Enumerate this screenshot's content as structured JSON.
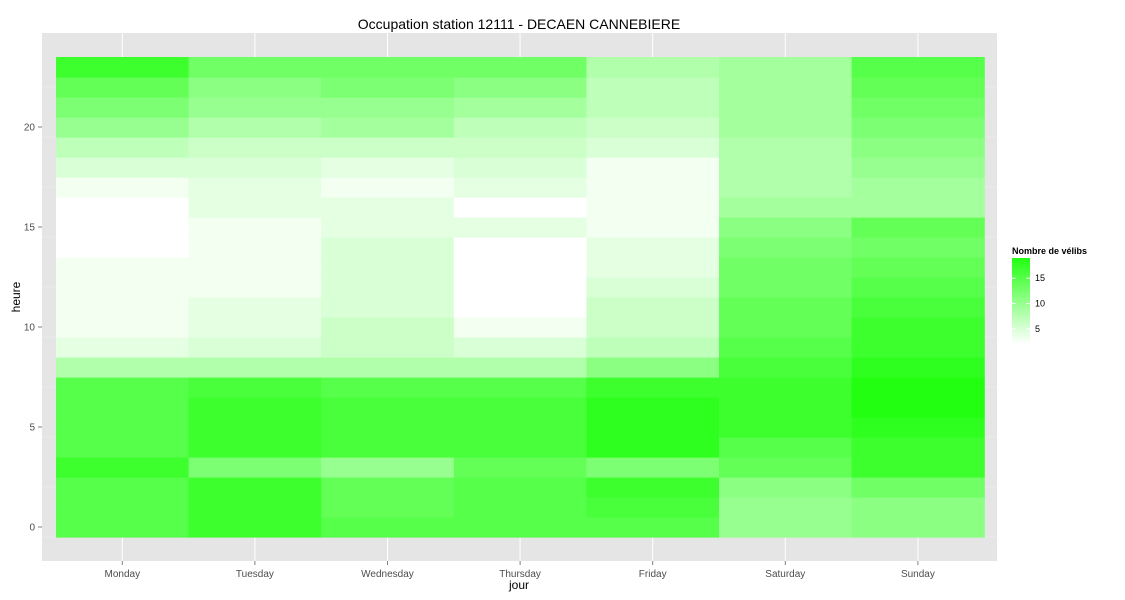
{
  "chart_data": {
    "type": "heatmap",
    "title": "Occupation station 12111 - DECAEN CANNEBIERE",
    "xlabel": "jour",
    "ylabel": "heure",
    "x_categories": [
      "Monday",
      "Tuesday",
      "Wednesday",
      "Thursday",
      "Friday",
      "Saturday",
      "Sunday"
    ],
    "y_hours": [
      0,
      1,
      2,
      3,
      4,
      5,
      6,
      7,
      8,
      9,
      10,
      11,
      12,
      13,
      14,
      15,
      16,
      17,
      18,
      19,
      20,
      21,
      22,
      23
    ],
    "y_ticks": [
      0,
      5,
      10,
      15,
      20
    ],
    "ylim": [
      -0.5,
      23.5
    ],
    "color_range": [
      2,
      19
    ],
    "color_low": "#ffffff",
    "color_high": "#22ff11",
    "legend": {
      "title": "Nombre de vélibs",
      "ticks": [
        5,
        10,
        15
      ],
      "position": "right"
    },
    "grid": true,
    "values": [
      [
        15,
        17,
        15,
        15,
        15,
        10,
        11
      ],
      [
        15,
        17,
        14,
        15,
        16,
        10,
        11
      ],
      [
        15,
        17,
        14,
        15,
        17,
        11,
        13
      ],
      [
        17,
        12,
        10,
        14,
        12,
        14,
        17
      ],
      [
        15,
        17,
        16,
        16,
        18,
        15,
        17
      ],
      [
        15,
        17,
        16,
        16,
        18,
        17,
        18
      ],
      [
        15,
        17,
        16,
        16,
        18,
        17,
        19
      ],
      [
        15,
        16,
        15,
        15,
        17,
        17,
        19
      ],
      [
        8,
        8,
        8,
        8,
        11,
        16,
        18
      ],
      [
        4,
        5,
        6,
        5,
        7,
        15,
        17
      ],
      [
        3,
        4,
        6,
        3,
        6,
        14,
        17
      ],
      [
        3,
        4,
        5,
        2,
        6,
        14,
        16
      ],
      [
        3,
        3,
        5,
        2,
        5,
        13,
        15
      ],
      [
        3,
        3,
        5,
        2,
        4,
        13,
        14
      ],
      [
        2,
        3,
        5,
        2,
        4,
        12,
        13
      ],
      [
        2,
        3,
        4,
        4,
        3,
        11,
        14
      ],
      [
        2,
        4,
        4,
        2,
        3,
        9,
        9
      ],
      [
        3,
        4,
        3,
        4,
        3,
        8,
        9
      ],
      [
        5,
        5,
        4,
        5,
        3,
        8,
        10
      ],
      [
        7,
        6,
        6,
        6,
        5,
        8,
        11
      ],
      [
        10,
        8,
        9,
        7,
        6,
        9,
        12
      ],
      [
        12,
        10,
        10,
        9,
        7,
        9,
        13
      ],
      [
        14,
        11,
        12,
        11,
        7,
        9,
        14
      ],
      [
        17,
        13,
        13,
        13,
        8,
        9,
        15
      ]
    ]
  }
}
